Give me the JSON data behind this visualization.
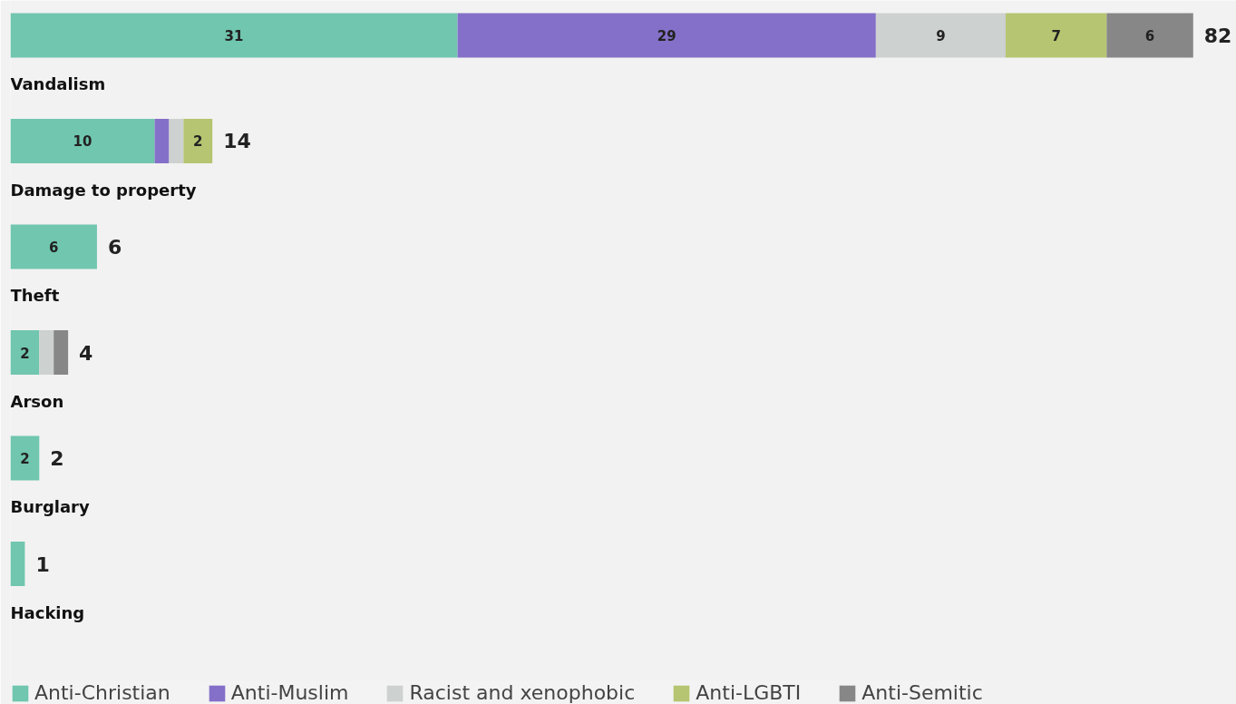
{
  "chart_data": {
    "type": "bar",
    "orientation": "horizontal",
    "stacked": true,
    "categories": [
      "Vandalism",
      "Damage to property",
      "Theft",
      "Arson",
      "Burglary",
      "Hacking"
    ],
    "xlim": [
      0,
      85
    ],
    "tick_labels": false,
    "grid": false,
    "legend": "bottom",
    "series": [
      {
        "name": "Anti-Christian",
        "color": "#70c6ae",
        "values": [
          31,
          10,
          6,
          2,
          2,
          1
        ],
        "value_labels": [
          "31",
          "10",
          "6",
          "2",
          "2",
          null
        ]
      },
      {
        "name": "Anti-Muslim",
        "color": "#8470c8",
        "values": [
          29,
          1,
          null,
          null,
          null,
          null
        ],
        "value_labels": [
          "29",
          null,
          null,
          null,
          null,
          null
        ]
      },
      {
        "name": "Racist and xenophobic",
        "color": "#cdd1d0",
        "values": [
          9,
          1,
          null,
          1,
          null,
          null
        ],
        "value_labels": [
          "9",
          null,
          null,
          null,
          null,
          null
        ]
      },
      {
        "name": "Anti-LGBTI",
        "color": "#b5c571",
        "values": [
          7,
          2,
          null,
          null,
          null,
          null
        ],
        "value_labels": [
          "7",
          "2",
          null,
          null,
          null,
          null
        ]
      },
      {
        "name": "Anti-Semitic",
        "color": "#878787",
        "values": [
          6,
          null,
          null,
          1,
          null,
          null
        ],
        "value_labels": [
          "6",
          null,
          null,
          null,
          null,
          null
        ]
      }
    ],
    "totals": [
      "82",
      "14",
      "6",
      "4",
      "2",
      "1"
    ]
  }
}
